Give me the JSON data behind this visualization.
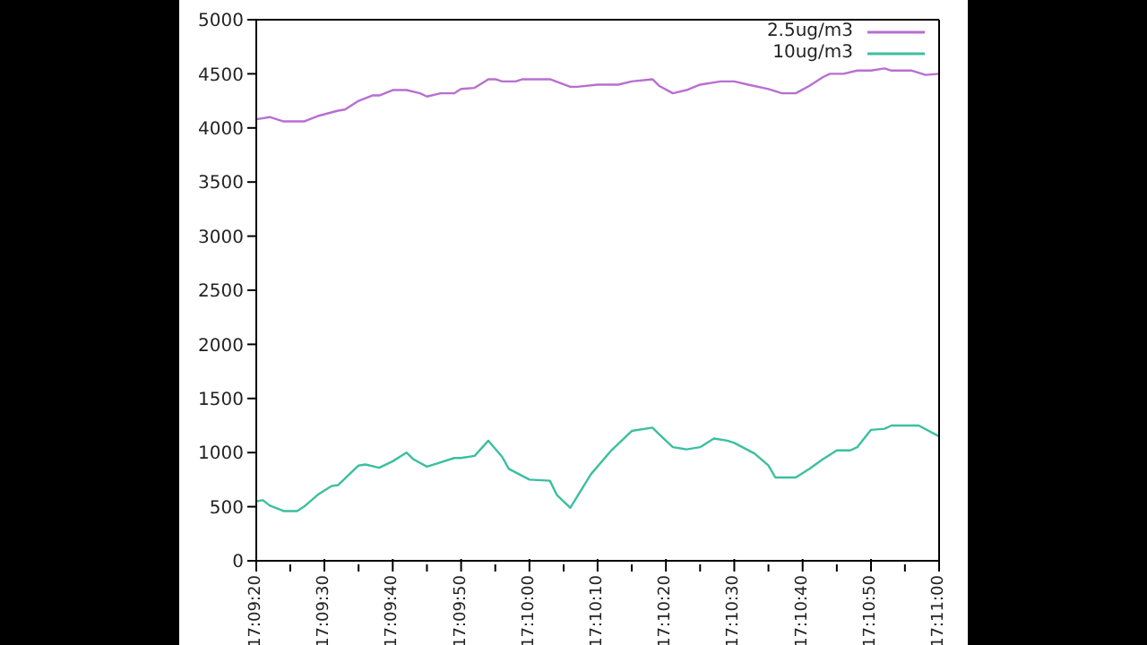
{
  "chart_data": {
    "type": "line",
    "legend": "top right",
    "grid": false,
    "marker": "none",
    "line_style": "solid",
    "ylim": [
      0,
      5000
    ],
    "yticks": [
      0,
      500,
      1000,
      1500,
      2000,
      2500,
      3000,
      3500,
      4000,
      4500,
      5000
    ],
    "xlim": [
      17.15556,
      17.18333
    ],
    "xticks": [
      {
        "value": 17.15556,
        "label": "17:09:20"
      },
      {
        "value": 17.15694,
        "label": null
      },
      {
        "value": 17.15833,
        "label": "17:09:30"
      },
      {
        "value": 17.15972,
        "label": null
      },
      {
        "value": 17.16111,
        "label": "17:09:40"
      },
      {
        "value": 17.1625,
        "label": null
      },
      {
        "value": 17.16389,
        "label": "17:09:50"
      },
      {
        "value": 17.16528,
        "label": null
      },
      {
        "value": 17.16667,
        "label": "17:10:00"
      },
      {
        "value": 17.16806,
        "label": null
      },
      {
        "value": 17.16944,
        "label": "17:10:10"
      },
      {
        "value": 17.17083,
        "label": null
      },
      {
        "value": 17.17222,
        "label": "17:10:20"
      },
      {
        "value": 17.17361,
        "label": null
      },
      {
        "value": 17.175,
        "label": "17:10:30"
      },
      {
        "value": 17.17639,
        "label": null
      },
      {
        "value": 17.17778,
        "label": "17:10:40"
      },
      {
        "value": 17.17917,
        "label": null
      },
      {
        "value": 17.18056,
        "label": "17:10:50"
      },
      {
        "value": 17.18194,
        "label": null
      },
      {
        "value": 17.18333,
        "label": "17:11:00"
      }
    ],
    "series": [
      {
        "name": "2.5ug/m3",
        "color": "#b86fd0",
        "x": [
          17.15556,
          17.15611,
          17.15667,
          17.1575,
          17.15806,
          17.15889,
          17.15917,
          17.15972,
          17.16028,
          17.16056,
          17.16111,
          17.16167,
          17.16222,
          17.1625,
          17.16306,
          17.16361,
          17.16389,
          17.16444,
          17.165,
          17.16528,
          17.16556,
          17.16611,
          17.16639,
          17.1675,
          17.16833,
          17.16861,
          17.16944,
          17.17028,
          17.17083,
          17.17167,
          17.17194,
          17.1725,
          17.17306,
          17.17361,
          17.17444,
          17.175,
          17.17556,
          17.17639,
          17.17694,
          17.1775,
          17.17806,
          17.17861,
          17.17889,
          17.17944,
          17.18,
          17.18056,
          17.18111,
          17.18139,
          17.18222,
          17.18278,
          17.18333
        ],
        "values": [
          4080,
          4100,
          4060,
          4060,
          4110,
          4160,
          4170,
          4250,
          4300,
          4300,
          4350,
          4350,
          4320,
          4290,
          4320,
          4320,
          4360,
          4370,
          4450,
          4450,
          4430,
          4430,
          4450,
          4450,
          4380,
          4380,
          4400,
          4400,
          4430,
          4450,
          4390,
          4320,
          4350,
          4400,
          4430,
          4430,
          4400,
          4360,
          4320,
          4320,
          4390,
          4470,
          4500,
          4500,
          4530,
          4530,
          4550,
          4530,
          4530,
          4490,
          4500
        ]
      },
      {
        "name": "10ug/m3",
        "color": "#3cbfa0",
        "x": [
          17.15556,
          17.15583,
          17.15611,
          17.15667,
          17.15722,
          17.1575,
          17.15806,
          17.15861,
          17.15889,
          17.15972,
          17.16,
          17.16056,
          17.16111,
          17.16167,
          17.16194,
          17.1625,
          17.16306,
          17.16361,
          17.16389,
          17.16444,
          17.165,
          17.16556,
          17.16583,
          17.16667,
          17.1675,
          17.16778,
          17.16833,
          17.16917,
          17.17,
          17.17083,
          17.17167,
          17.17194,
          17.1725,
          17.17306,
          17.17361,
          17.17417,
          17.17472,
          17.175,
          17.17583,
          17.17639,
          17.17667,
          17.1775,
          17.17806,
          17.17861,
          17.17917,
          17.17972,
          17.18,
          17.18056,
          17.18111,
          17.18139,
          17.1825,
          17.18333
        ],
        "values": [
          550,
          560,
          510,
          460,
          460,
          500,
          610,
          690,
          700,
          880,
          890,
          860,
          920,
          1000,
          940,
          870,
          910,
          950,
          950,
          970,
          1110,
          960,
          850,
          750,
          740,
          610,
          490,
          800,
          1020,
          1200,
          1230,
          1170,
          1050,
          1030,
          1050,
          1130,
          1110,
          1090,
          990,
          880,
          770,
          770,
          850,
          940,
          1020,
          1020,
          1050,
          1210,
          1220,
          1250,
          1250,
          1150
        ]
      }
    ]
  }
}
